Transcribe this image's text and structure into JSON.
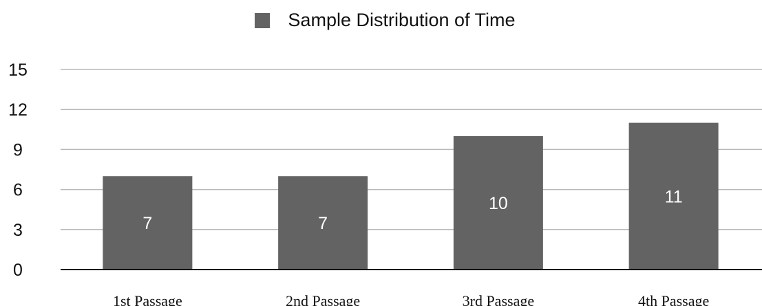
{
  "chart_data": {
    "type": "bar",
    "categories": [
      "1st Passage",
      "2nd Passage",
      "3rd Passage",
      "4th Passage"
    ],
    "series": [
      {
        "name": "Sample Distribution of Time",
        "values": [
          7,
          7,
          10,
          11
        ],
        "color": "#636363"
      }
    ],
    "data_labels": [
      "7",
      "7",
      "10",
      "11"
    ],
    "ylim": [
      0,
      15
    ],
    "yticks": [
      0,
      3,
      6,
      9,
      12,
      15
    ],
    "ytick_labels": [
      "0",
      "3",
      "6",
      "9",
      "12",
      "15"
    ],
    "grid": true,
    "legend": "top-center",
    "title": "",
    "xlabel": "",
    "ylabel": ""
  }
}
